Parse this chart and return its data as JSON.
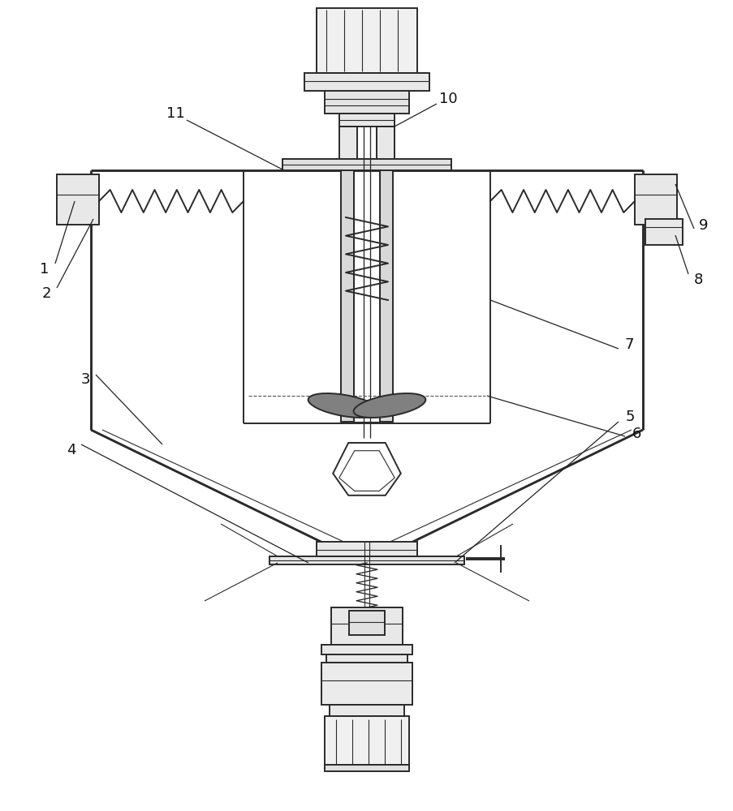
{
  "bg_color": "#ffffff",
  "lc": "#2a2a2a",
  "lw": 1.4,
  "tlw": 0.8,
  "gray_dark": "#606060",
  "gray_mid": "#909090",
  "gray_light": "#c8c8c8"
}
